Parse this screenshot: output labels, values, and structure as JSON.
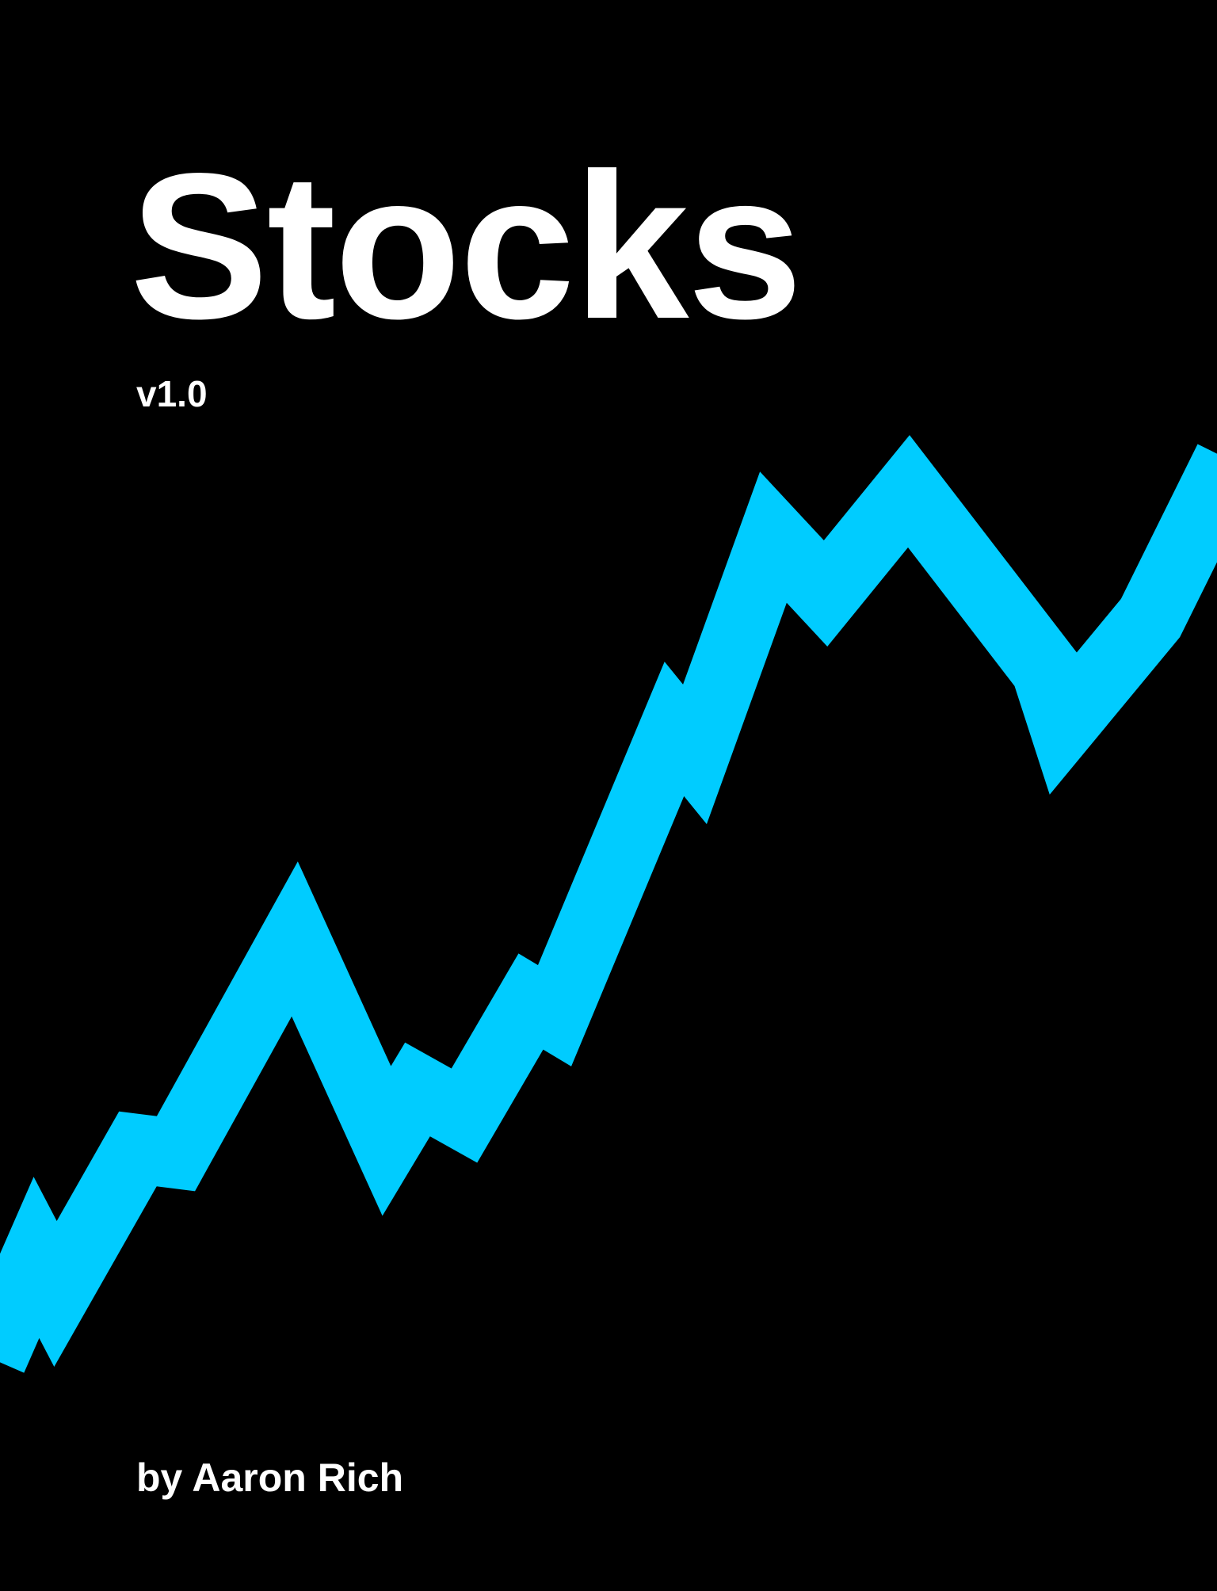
{
  "cover": {
    "title": "Stocks",
    "version": "v1.0",
    "author": "by Aaron Rich"
  },
  "colors": {
    "background": "#000000",
    "text": "#ffffff",
    "line": "#00ccff"
  },
  "icon": "rising-stock-line-graphic"
}
